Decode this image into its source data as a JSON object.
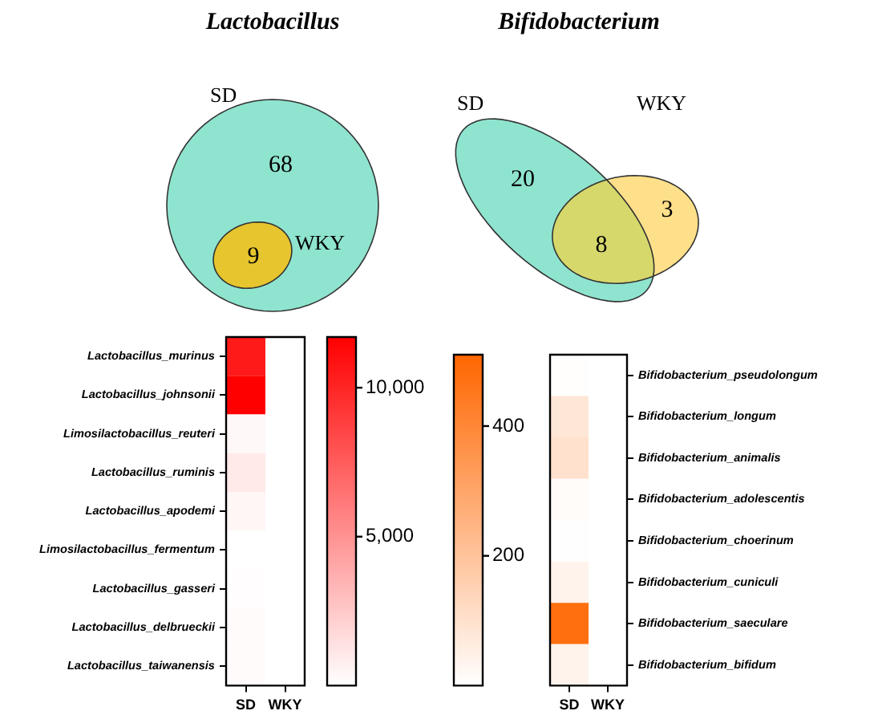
{
  "chart_data": [
    {
      "type": "other",
      "title": "Lactobacillus",
      "categories": [
        null,
        null,
        null
      ],
      "values": [
        68,
        null,
        9
      ],
      "colors": [
        "#8fe4cf",
        null,
        "#e6c52e"
      ],
      "data_labels": true,
      "annotations": [
        "SD",
        "WKY"
      ]
    },
    {
      "type": "other",
      "title": "Bifidobacterium",
      "categories": [
        null,
        null,
        null
      ],
      "values": [
        20,
        3,
        8
      ],
      "colors": [
        "#8fe4cf",
        "#ffe08a",
        "#d6d86c"
      ],
      "data_labels": true,
      "annotations": [
        "SD",
        "WKY"
      ]
    },
    {
      "type": "heatmap",
      "categories": [
        "SD",
        "WKY"
      ],
      "y_categories": [
        "Lactobacillus_murinus",
        "Lactobacillus_johnsonii",
        "Limosilactobacillus_reuteri",
        "Lactobacillus_ruminis",
        "Lactobacillus_apodemi",
        "Limosilactobacillus_fermentum",
        "Lactobacillus_gasseri",
        "Lactobacillus_delbrueckii",
        "Lactobacillus_taiwanensis"
      ],
      "cells": [
        [
          10500,
          0
        ],
        [
          11700,
          0
        ],
        [
          300,
          0
        ],
        [
          1000,
          0
        ],
        [
          400,
          0
        ],
        [
          0,
          0
        ],
        [
          100,
          0
        ],
        [
          200,
          0
        ],
        [
          200,
          0
        ]
      ],
      "clim": [
        0,
        11700
      ],
      "cticks": [
        {
          "value": 5000,
          "label": "5,000"
        },
        {
          "value": 10000,
          "label": "10,000"
        }
      ],
      "color": "#ff0000"
    },
    {
      "type": "heatmap",
      "categories": [
        "SD",
        "WKY"
      ],
      "y_categories": [
        "Bifidobacterium_pseudolongum",
        "Bifidobacterium_longum",
        "Bifidobacterium_animalis",
        "Bifidobacterium_adolescentis",
        "Bifidobacterium_choerinum",
        "Bifidobacterium_cuniculi",
        "Bifidobacterium_saeculare",
        "Bifidobacterium_bifidum"
      ],
      "cells": [
        [
          5,
          0
        ],
        [
          80,
          0
        ],
        [
          100,
          0
        ],
        [
          10,
          0
        ],
        [
          3,
          0
        ],
        [
          40,
          0
        ],
        [
          480,
          0
        ],
        [
          40,
          0
        ]
      ],
      "clim": [
        0,
        510
      ],
      "cticks": [
        200,
        400
      ],
      "color": "#ff6600"
    }
  ]
}
